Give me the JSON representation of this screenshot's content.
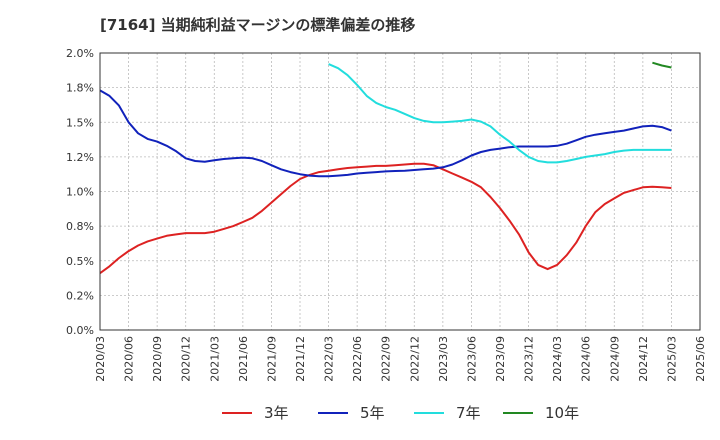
{
  "chart_data": {
    "type": "line",
    "title": "[7164]  当期純利益マージンの標準偏差の推移",
    "xlabel": "",
    "ylabel": "",
    "ylim": [
      0,
      2.0
    ],
    "yticks": [
      "0.0%",
      "0.2%",
      "0.5%",
      "0.8%",
      "1.0%",
      "1.2%",
      "1.5%",
      "1.8%",
      "2.0%"
    ],
    "x_ticks": [
      "2020/03",
      "2020/06",
      "2020/09",
      "2020/12",
      "2021/03",
      "2021/06",
      "2021/09",
      "2021/12",
      "2022/03",
      "2022/06",
      "2022/09",
      "2022/12",
      "2023/03",
      "2023/06",
      "2023/09",
      "2023/12",
      "2024/03",
      "2024/06",
      "2024/09",
      "2024/12",
      "2025/03",
      "2025/06"
    ],
    "grid": true,
    "legend_position": "bottom",
    "series": [
      {
        "name": "3年",
        "color": "#dd2222",
        "points": [
          [
            "2020/03",
            0.41
          ],
          [
            "2020/04",
            0.46
          ],
          [
            "2020/05",
            0.52
          ],
          [
            "2020/06",
            0.57
          ],
          [
            "2020/07",
            0.61
          ],
          [
            "2020/08",
            0.64
          ],
          [
            "2020/09",
            0.66
          ],
          [
            "2020/10",
            0.68
          ],
          [
            "2020/11",
            0.69
          ],
          [
            "2020/12",
            0.7
          ],
          [
            "2021/01",
            0.7
          ],
          [
            "2021/02",
            0.7
          ],
          [
            "2021/03",
            0.71
          ],
          [
            "2021/04",
            0.73
          ],
          [
            "2021/05",
            0.75
          ],
          [
            "2021/06",
            0.78
          ],
          [
            "2021/07",
            0.81
          ],
          [
            "2021/08",
            0.86
          ],
          [
            "2021/09",
            0.92
          ],
          [
            "2021/10",
            0.98
          ],
          [
            "2021/11",
            1.04
          ],
          [
            "2021/12",
            1.09
          ],
          [
            "2021/13",
            1.12
          ],
          [
            "2022/02",
            1.14
          ],
          [
            "2022/03",
            1.15
          ],
          [
            "2022/04",
            1.16
          ],
          [
            "2022/05",
            1.17
          ],
          [
            "2022/06",
            1.175
          ],
          [
            "2022/07",
            1.18
          ],
          [
            "2022/08",
            1.185
          ],
          [
            "2022/09",
            1.185
          ],
          [
            "2022/10",
            1.19
          ],
          [
            "2022/11",
            1.195
          ],
          [
            "2022/12",
            1.2
          ],
          [
            "2023/01",
            1.2
          ],
          [
            "2023/02",
            1.19
          ],
          [
            "2023/03",
            1.16
          ],
          [
            "2023/04",
            1.13
          ],
          [
            "2023/05",
            1.1
          ],
          [
            "2023/06",
            1.07
          ],
          [
            "2023/07",
            1.03
          ],
          [
            "2023/08",
            0.96
          ],
          [
            "2023/09",
            0.88
          ],
          [
            "2023/10",
            0.79
          ],
          [
            "2023/11",
            0.69
          ],
          [
            "2023/12",
            0.56
          ],
          [
            "2024/01",
            0.47
          ],
          [
            "2024/02",
            0.44
          ],
          [
            "2024/03",
            0.47
          ],
          [
            "2024/04",
            0.54
          ],
          [
            "2024/05",
            0.63
          ],
          [
            "2024/06",
            0.75
          ],
          [
            "2024/07",
            0.85
          ],
          [
            "2024/08",
            0.91
          ],
          [
            "2024/09",
            0.95
          ],
          [
            "2024/10",
            0.99
          ],
          [
            "2024/11",
            1.01
          ],
          [
            "2024/12",
            1.03
          ],
          [
            "2025/01",
            1.035
          ],
          [
            "2025/02",
            1.03
          ],
          [
            "2025/03",
            1.025
          ]
        ]
      },
      {
        "name": "5年",
        "color": "#1122bb",
        "points": [
          [
            "2020/03",
            1.73
          ],
          [
            "2020/04",
            1.69
          ],
          [
            "2020/05",
            1.62
          ],
          [
            "2020/06",
            1.5
          ],
          [
            "2020/07",
            1.42
          ],
          [
            "2020/08",
            1.38
          ],
          [
            "2020/09",
            1.36
          ],
          [
            "2020/10",
            1.33
          ],
          [
            "2020/11",
            1.29
          ],
          [
            "2020/12",
            1.24
          ],
          [
            "2021/01",
            1.22
          ],
          [
            "2021/02",
            1.215
          ],
          [
            "2021/03",
            1.225
          ],
          [
            "2021/04",
            1.235
          ],
          [
            "2021/05",
            1.24
          ],
          [
            "2021/06",
            1.245
          ],
          [
            "2021/07",
            1.24
          ],
          [
            "2021/08",
            1.22
          ],
          [
            "2021/09",
            1.19
          ],
          [
            "2021/10",
            1.16
          ],
          [
            "2021/11",
            1.14
          ],
          [
            "2021/12",
            1.125
          ],
          [
            "2021/13",
            1.115
          ],
          [
            "2022/02",
            1.11
          ],
          [
            "2022/03",
            1.11
          ],
          [
            "2022/04",
            1.115
          ],
          [
            "2022/05",
            1.12
          ],
          [
            "2022/06",
            1.13
          ],
          [
            "2022/07",
            1.135
          ],
          [
            "2022/08",
            1.14
          ],
          [
            "2022/09",
            1.145
          ],
          [
            "2022/10",
            1.148
          ],
          [
            "2022/11",
            1.15
          ],
          [
            "2022/12",
            1.155
          ],
          [
            "2023/01",
            1.16
          ],
          [
            "2023/02",
            1.165
          ],
          [
            "2023/03",
            1.175
          ],
          [
            "2023/04",
            1.195
          ],
          [
            "2023/05",
            1.225
          ],
          [
            "2023/06",
            1.26
          ],
          [
            "2023/07",
            1.285
          ],
          [
            "2023/08",
            1.3
          ],
          [
            "2023/09",
            1.31
          ],
          [
            "2023/10",
            1.32
          ],
          [
            "2023/11",
            1.325
          ],
          [
            "2023/12",
            1.325
          ],
          [
            "2024/01",
            1.325
          ],
          [
            "2024/02",
            1.325
          ],
          [
            "2024/03",
            1.33
          ],
          [
            "2024/04",
            1.345
          ],
          [
            "2024/05",
            1.37
          ],
          [
            "2024/06",
            1.395
          ],
          [
            "2024/07",
            1.41
          ],
          [
            "2024/08",
            1.42
          ],
          [
            "2024/09",
            1.43
          ],
          [
            "2024/10",
            1.44
          ],
          [
            "2024/11",
            1.455
          ],
          [
            "2024/12",
            1.47
          ],
          [
            "2025/01",
            1.475
          ],
          [
            "2025/02",
            1.465
          ],
          [
            "2025/03",
            1.44
          ]
        ]
      },
      {
        "name": "7年",
        "color": "#22dddd",
        "points": [
          [
            "2022/03",
            1.92
          ],
          [
            "2022/04",
            1.89
          ],
          [
            "2022/05",
            1.84
          ],
          [
            "2022/06",
            1.77
          ],
          [
            "2022/07",
            1.69
          ],
          [
            "2022/08",
            1.64
          ],
          [
            "2022/09",
            1.61
          ],
          [
            "2022/10",
            1.59
          ],
          [
            "2022/11",
            1.56
          ],
          [
            "2022/12",
            1.53
          ],
          [
            "2023/01",
            1.51
          ],
          [
            "2023/02",
            1.5
          ],
          [
            "2023/03",
            1.5
          ],
          [
            "2023/04",
            1.505
          ],
          [
            "2023/05",
            1.51
          ],
          [
            "2023/06",
            1.52
          ],
          [
            "2023/07",
            1.505
          ],
          [
            "2023/08",
            1.47
          ],
          [
            "2023/09",
            1.41
          ],
          [
            "2023/10",
            1.36
          ],
          [
            "2023/11",
            1.3
          ],
          [
            "2023/12",
            1.25
          ],
          [
            "2024/01",
            1.22
          ],
          [
            "2024/02",
            1.21
          ],
          [
            "2024/03",
            1.21
          ],
          [
            "2024/04",
            1.22
          ],
          [
            "2024/05",
            1.235
          ],
          [
            "2024/06",
            1.25
          ],
          [
            "2024/07",
            1.26
          ],
          [
            "2024/08",
            1.27
          ],
          [
            "2024/09",
            1.285
          ],
          [
            "2024/10",
            1.295
          ],
          [
            "2024/11",
            1.3
          ],
          [
            "2024/12",
            1.3
          ],
          [
            "2025/01",
            1.3
          ],
          [
            "2025/02",
            1.3
          ],
          [
            "2025/03",
            1.3
          ]
        ]
      },
      {
        "name": "10年",
        "color": "#228822",
        "points": [
          [
            "2025/01",
            1.93
          ],
          [
            "2025/02",
            1.91
          ],
          [
            "2025/03",
            1.895
          ]
        ]
      }
    ]
  }
}
